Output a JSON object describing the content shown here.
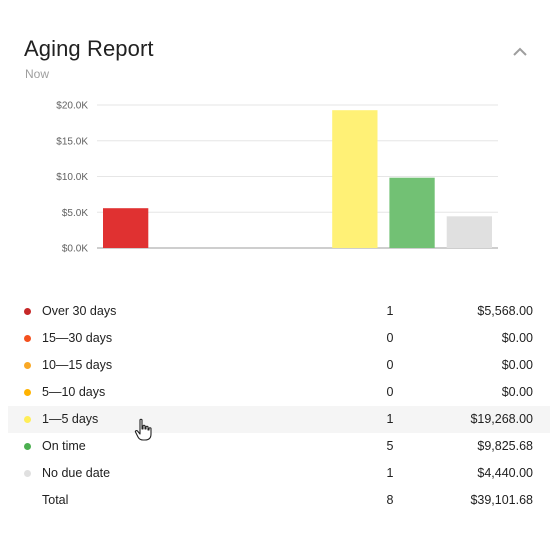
{
  "header": {
    "title": "Aging Report",
    "subtitle": "Now",
    "collapse_icon": "chevron-up-icon"
  },
  "chart_data": {
    "type": "bar",
    "categories": [
      "Over 30 days",
      "15—30 days",
      "10—15 days",
      "5—10 days",
      "1—5 days",
      "On time",
      "No due date"
    ],
    "values": [
      5568.0,
      0,
      0,
      0,
      19268.0,
      9825.68,
      4440.0
    ],
    "colors": [
      "#e03131",
      "#f4511e",
      "#f9a825",
      "#ffb300",
      "#fff176",
      "#72c174",
      "#e0e0e0"
    ],
    "yticks": [
      "$0.0K",
      "$5.0K",
      "$10.0K",
      "$15.0K",
      "$20.0K"
    ],
    "ytick_values": [
      0,
      5000,
      10000,
      15000,
      20000
    ],
    "ylim": [
      0,
      20000
    ],
    "grid": true,
    "legend": "none"
  },
  "table": {
    "rows": [
      {
        "label": "Over 30 days",
        "count": "1",
        "amount": "$5,568.00",
        "color": "#c62828"
      },
      {
        "label": "15—30 days",
        "count": "0",
        "amount": "$0.00",
        "color": "#f4511e"
      },
      {
        "label": "10—15 days",
        "count": "0",
        "amount": "$0.00",
        "color": "#f9a825"
      },
      {
        "label": "5—10 days",
        "count": "0",
        "amount": "$0.00",
        "color": "#ffb300"
      },
      {
        "label": "1—5 days",
        "count": "1",
        "amount": "$19,268.00",
        "color": "#ffee58"
      },
      {
        "label": "On time",
        "count": "5",
        "amount": "$9,825.68",
        "color": "#4caf50"
      },
      {
        "label": "No due date",
        "count": "1",
        "amount": "$4,440.00",
        "color": "#e0e0e0"
      }
    ],
    "total": {
      "label": "Total",
      "count": "8",
      "amount": "$39,101.68"
    }
  }
}
